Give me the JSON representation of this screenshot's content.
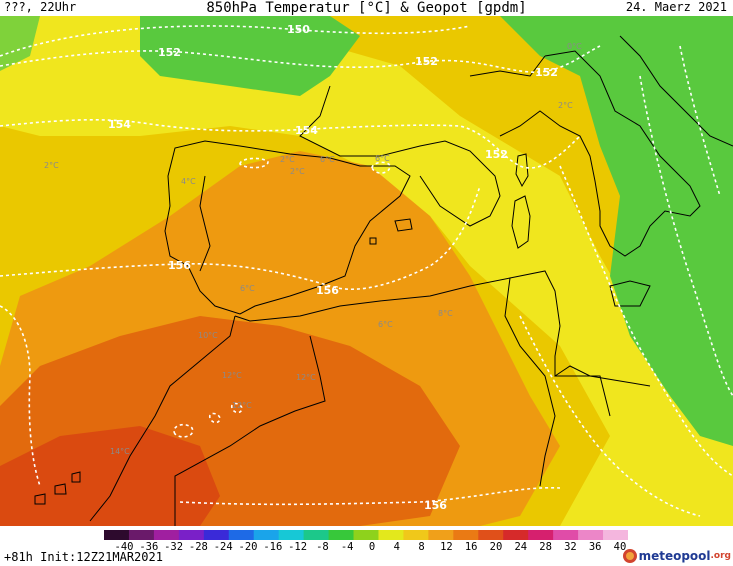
{
  "header": {
    "left": "???, 22Uhr",
    "title": "850hPa Temperatur [°C] & Geopot [gpdm]",
    "date": "24. Maerz 2021"
  },
  "map": {
    "geopotential_labels": [
      "150",
      "152",
      "152",
      "152",
      "152",
      "154",
      "154",
      "156",
      "156",
      "156"
    ],
    "temperature_labels": [
      "0°C",
      "2°C",
      "2°C",
      "2°C",
      "4°C",
      "6°C",
      "6°C",
      "2°C",
      "6°C",
      "8°C",
      "6°C",
      "10°C",
      "12°C",
      "12°C",
      "12°C",
      "14°C"
    ],
    "colors": {
      "cold_green": "#59c93e",
      "yellow": "#f0e61e",
      "gold": "#eac800",
      "orange": "#ee9a10",
      "deep_orange": "#e26a0d",
      "red_orange": "#da4a10",
      "isohypse": "#ffffff",
      "coastline": "#000000"
    }
  },
  "colorbar": {
    "ticks": [
      "-40",
      "-36",
      "-32",
      "-28",
      "-24",
      "-20",
      "-16",
      "-12",
      "-8",
      "-4",
      "0",
      "4",
      "8",
      "12",
      "16",
      "20",
      "24",
      "28",
      "32",
      "36",
      "40"
    ],
    "colors": [
      "#2d0a2d",
      "#6a1a6a",
      "#a01fa0",
      "#7a20c8",
      "#3a2ad8",
      "#1e6ae6",
      "#1aa4ea",
      "#17c8d6",
      "#1cc88a",
      "#37c83a",
      "#8ed21c",
      "#e3e81c",
      "#f0c81a",
      "#f0a01a",
      "#ea7a14",
      "#e0501a",
      "#d62a2a",
      "#d6206e",
      "#e04ca8",
      "#ec86c8",
      "#f4b6de"
    ]
  },
  "footer": {
    "run_info": "+81h Init:12Z21MAR2021",
    "brand_name": "meteopool",
    "brand_tld": ".org"
  }
}
